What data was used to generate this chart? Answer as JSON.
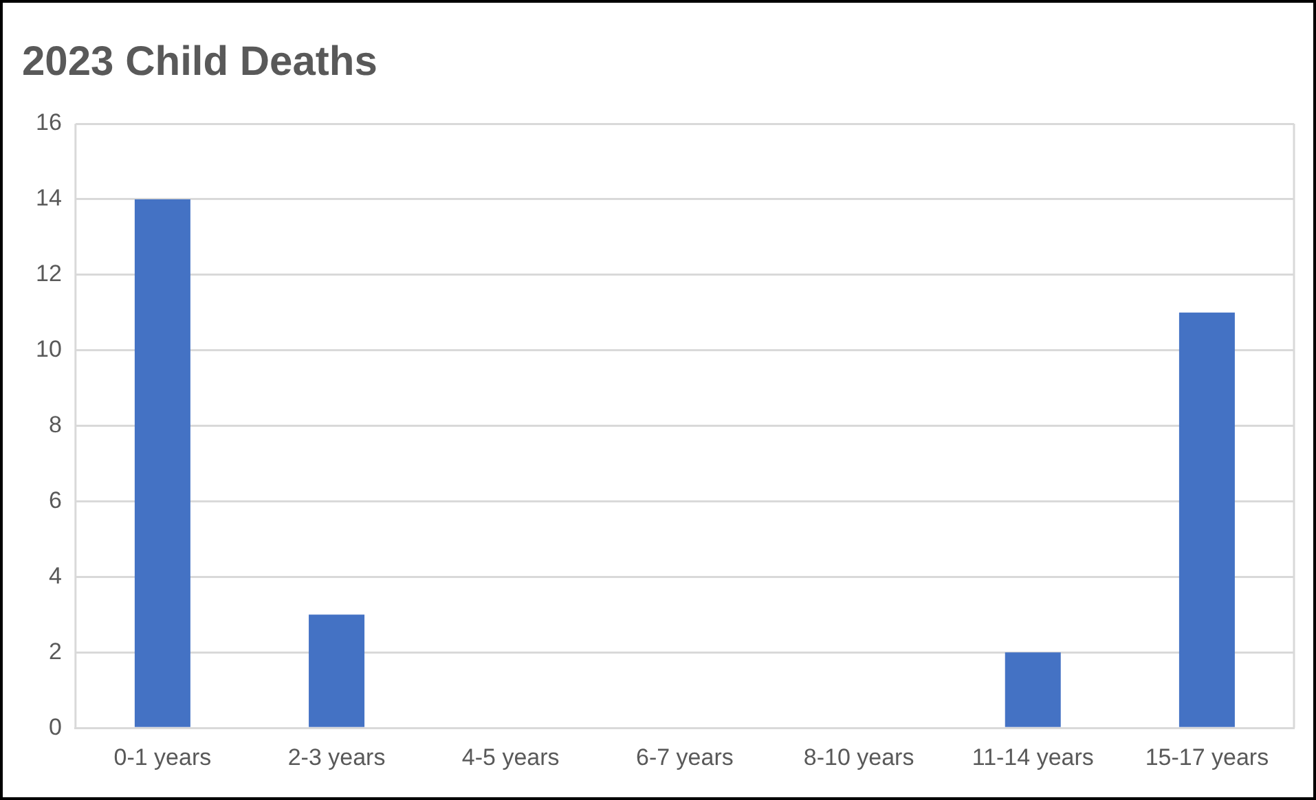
{
  "chart_data": {
    "type": "bar",
    "title": "2023 Child Deaths",
    "categories": [
      "0-1 years",
      "2-3 years",
      "4-5 years",
      "6-7 years",
      "8-10 years",
      "11-14 years",
      "15-17 years"
    ],
    "values": [
      14,
      3,
      0,
      0,
      0,
      2,
      11
    ],
    "color": "#4472c4",
    "ylim": [
      0,
      16
    ],
    "yticks": [
      0,
      2,
      4,
      6,
      8,
      10,
      12,
      14,
      16
    ],
    "grid": "y",
    "legend": false
  }
}
